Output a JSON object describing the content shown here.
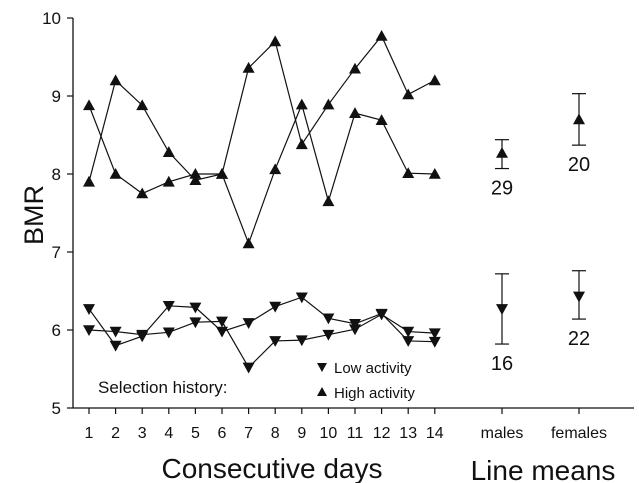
{
  "chart_data": {
    "type": "line",
    "ylabel": "BMR",
    "xlabel": "Consecutive days",
    "xlabel2": "Line means",
    "ylim": [
      5,
      10
    ],
    "yticks": [
      5,
      6,
      7,
      8,
      9,
      10
    ],
    "x": [
      1,
      2,
      3,
      4,
      5,
      6,
      7,
      8,
      9,
      10,
      11,
      12,
      13,
      14
    ],
    "x_tick_labels": [
      "1",
      "2",
      "3",
      "4",
      "5",
      "6",
      "7",
      "8",
      "9",
      "10",
      "11",
      "12",
      "13",
      "14"
    ],
    "mean_labels": [
      "males",
      "females"
    ],
    "series": [
      {
        "marker": "up",
        "group": "high",
        "values": [
          8.88,
          8.0,
          7.75,
          7.9,
          8.0,
          8.0,
          7.11,
          8.06,
          8.89,
          7.65,
          8.78,
          8.69,
          8.01,
          8.0
        ]
      },
      {
        "marker": "up",
        "group": "high",
        "values": [
          7.9,
          9.2,
          8.88,
          8.28,
          7.92,
          8.0,
          9.36,
          9.7,
          8.38,
          8.89,
          9.35,
          9.77,
          9.02,
          9.2
        ]
      },
      {
        "marker": "down",
        "group": "low",
        "values": [
          6.27,
          5.8,
          5.92,
          6.31,
          6.29,
          5.98,
          6.09,
          6.3,
          6.42,
          6.15,
          6.08,
          6.21,
          5.86,
          5.85
        ]
      },
      {
        "marker": "down",
        "group": "low",
        "values": [
          6.0,
          5.98,
          5.94,
          5.97,
          6.1,
          6.11,
          5.52,
          5.86,
          5.87,
          5.94,
          6.01,
          6.2,
          5.98,
          5.96
        ]
      }
    ],
    "line_means": [
      {
        "column": "males",
        "group": "high",
        "marker": "up",
        "mean": 8.27,
        "low": 8.07,
        "high": 8.44,
        "n": "29"
      },
      {
        "column": "females",
        "group": "high",
        "marker": "up",
        "mean": 8.7,
        "low": 8.37,
        "high": 9.03,
        "n": "20"
      },
      {
        "column": "males",
        "group": "low",
        "marker": "down",
        "mean": 6.27,
        "low": 5.82,
        "high": 6.72,
        "n": "16"
      },
      {
        "column": "females",
        "group": "low",
        "marker": "down",
        "mean": 6.43,
        "low": 6.14,
        "high": 6.76,
        "n": "22"
      }
    ],
    "legend": {
      "title": "Selection history:",
      "entries": [
        {
          "marker": "down",
          "label": "Low activity"
        },
        {
          "marker": "up",
          "label": "High activity"
        }
      ]
    }
  }
}
